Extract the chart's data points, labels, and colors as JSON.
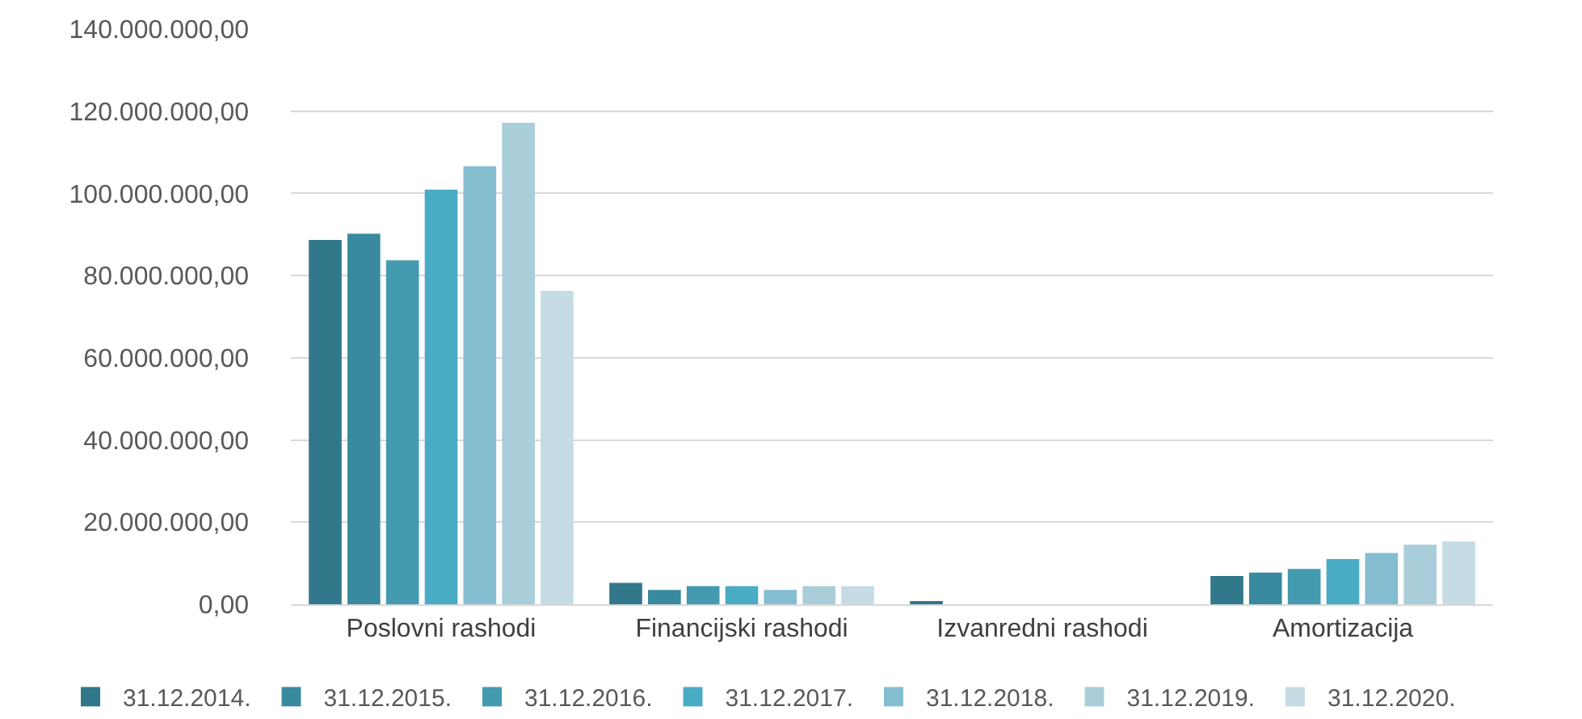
{
  "chart_data": {
    "type": "bar",
    "categories": [
      "Poslovni rashodi",
      "Financijski rashodi",
      "Izvanredni rashodi",
      "Amortizacija"
    ],
    "series": [
      {
        "name": "31.12.2014.",
        "color": "#31788a",
        "values": [
          88700000,
          5200000,
          400000,
          6900000
        ]
      },
      {
        "name": "31.12.2015.",
        "color": "#3a8a9f",
        "values": [
          90200000,
          3500000,
          0,
          7700000
        ]
      },
      {
        "name": "31.12.2016.",
        "color": "#449aaf",
        "values": [
          83700000,
          4400000,
          0,
          8600000
        ]
      },
      {
        "name": "31.12.2017.",
        "color": "#4aabc4",
        "values": [
          100900000,
          4400000,
          0,
          11000000
        ]
      },
      {
        "name": "31.12.2018.",
        "color": "#85bdd0",
        "values": [
          106600000,
          3500000,
          0,
          12500000
        ]
      },
      {
        "name": "31.12.2019.",
        "color": "#a9ceda",
        "values": [
          117200000,
          4400000,
          0,
          14500000
        ]
      },
      {
        "name": "31.12.2020.",
        "color": "#c5dce5",
        "values": [
          76300000,
          4400000,
          0,
          15300000
        ]
      }
    ],
    "ylim": [
      0,
      140000000
    ],
    "yticks": [
      {
        "value": 0,
        "label": "0,00"
      },
      {
        "value": 20000000,
        "label": "20.000.000,00"
      },
      {
        "value": 40000000,
        "label": "40.000.000,00"
      },
      {
        "value": 60000000,
        "label": "60.000.000,00"
      },
      {
        "value": 80000000,
        "label": "80.000.000,00"
      },
      {
        "value": 100000000,
        "label": "100.000.000,00"
      },
      {
        "value": 120000000,
        "label": "120.000.000,00"
      },
      {
        "value": 140000000,
        "label": "140.000.000,00"
      }
    ],
    "grid": "y",
    "legend": "bottom"
  }
}
